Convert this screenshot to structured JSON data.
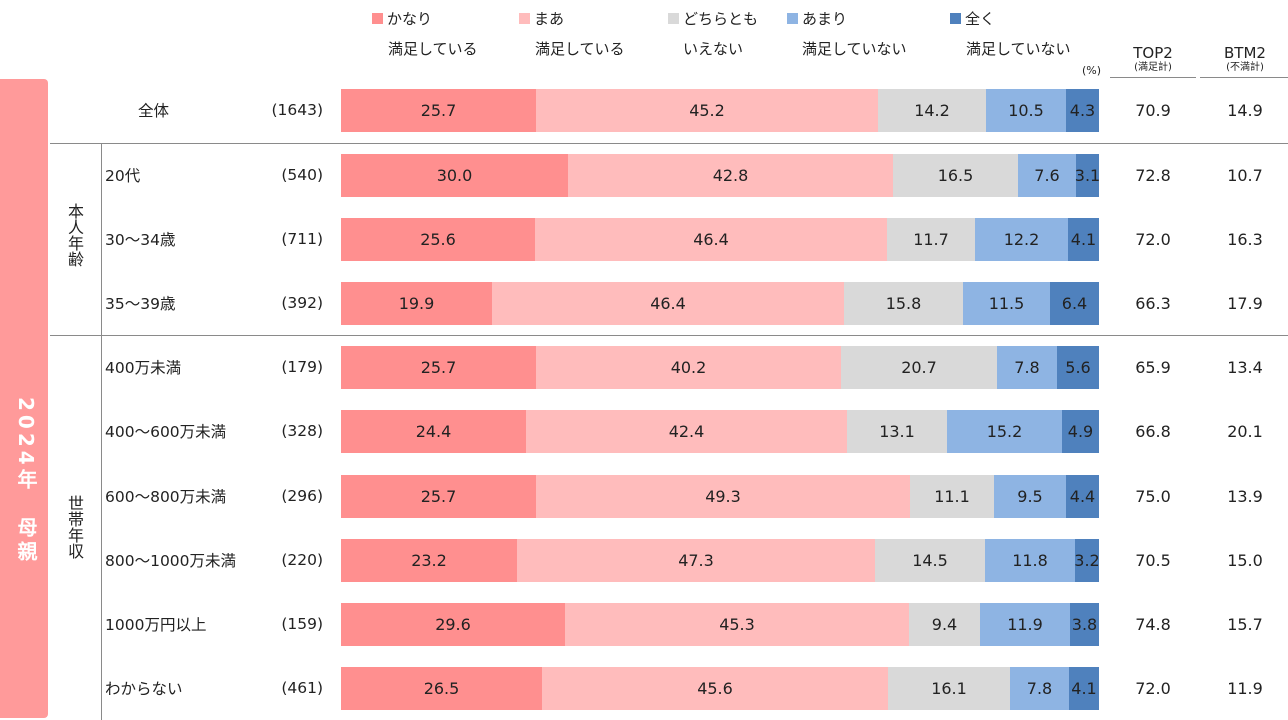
{
  "colors": {
    "kanari": "#ff8f8f",
    "maa": "#ffbcbc",
    "dochira": "#d9d9d9",
    "amari": "#8eb4e3",
    "mattaku": "#4f81bd",
    "band": "#ff9a9a",
    "separator": "#8a8a8a"
  },
  "side_band": {
    "label": "2024年　母親"
  },
  "unit_label": "(%)",
  "columns": {
    "top2": {
      "label": "TOP2",
      "sub": "(満足計)"
    },
    "btm2": {
      "label": "BTM2",
      "sub": "(不満計)"
    }
  },
  "groups": [
    {
      "label": "本人年齢"
    },
    {
      "label": "世帯年収"
    }
  ],
  "chart_data": {
    "type": "bar",
    "orientation": "horizontal",
    "stacked": true,
    "unit": "%",
    "xlim": [
      0,
      100
    ],
    "legend_position": "top",
    "series": [
      {
        "name": "かなり満足している",
        "line1": "かなり",
        "line2": "満足している",
        "color_key": "kanari",
        "values": [
          25.7,
          30.0,
          25.6,
          19.9,
          25.7,
          24.4,
          25.7,
          23.2,
          29.6,
          26.5
        ]
      },
      {
        "name": "まあ満足している",
        "line1": "まあ",
        "line2": "満足している",
        "color_key": "maa",
        "values": [
          45.2,
          42.8,
          46.4,
          46.4,
          40.2,
          42.4,
          49.3,
          47.3,
          45.3,
          45.6
        ]
      },
      {
        "name": "どちらともいえない",
        "line1": "どちらとも",
        "line2": "いえない",
        "color_key": "dochira",
        "values": [
          14.2,
          16.5,
          11.7,
          15.8,
          20.7,
          13.1,
          11.1,
          14.5,
          9.4,
          16.1
        ]
      },
      {
        "name": "あまり満足していない",
        "line1": "あまり",
        "line2": "満足していない",
        "color_key": "amari",
        "values": [
          10.5,
          7.6,
          12.2,
          11.5,
          7.8,
          15.2,
          9.5,
          11.8,
          11.9,
          7.8
        ]
      },
      {
        "name": "全く満足していない",
        "line1": "全く",
        "line2": "満足していない",
        "color_key": "mattaku",
        "values": [
          4.3,
          3.1,
          4.1,
          6.4,
          5.6,
          4.9,
          4.4,
          3.2,
          3.8,
          4.1
        ]
      }
    ],
    "rows": [
      {
        "label": "全体",
        "n": "(1643)",
        "group": null,
        "top2": "70.9",
        "btm2": "14.9"
      },
      {
        "label": "20代",
        "n": "(540)",
        "group": "本人年齢",
        "top2": "72.8",
        "btm2": "10.7"
      },
      {
        "label": "30～34歳",
        "n": "(711)",
        "group": "本人年齢",
        "top2": "72.0",
        "btm2": "16.3"
      },
      {
        "label": "35～39歳",
        "n": "(392)",
        "group": "本人年齢",
        "top2": "66.3",
        "btm2": "17.9"
      },
      {
        "label": "400万未満",
        "n": "(179)",
        "group": "世帯年収",
        "top2": "65.9",
        "btm2": "13.4"
      },
      {
        "label": "400～600万未満",
        "n": "(328)",
        "group": "世帯年収",
        "top2": "66.8",
        "btm2": "20.1"
      },
      {
        "label": "600～800万未満",
        "n": "(296)",
        "group": "世帯年収",
        "top2": "75.0",
        "btm2": "13.9"
      },
      {
        "label": "800～1000万未満",
        "n": "(220)",
        "group": "世帯年収",
        "top2": "70.5",
        "btm2": "15.0"
      },
      {
        "label": "1000万円以上",
        "n": "(159)",
        "group": "世帯年収",
        "top2": "74.8",
        "btm2": "15.7"
      },
      {
        "label": "わからない",
        "n": "(461)",
        "group": "世帯年収",
        "top2": "72.0",
        "btm2": "11.9"
      }
    ]
  }
}
